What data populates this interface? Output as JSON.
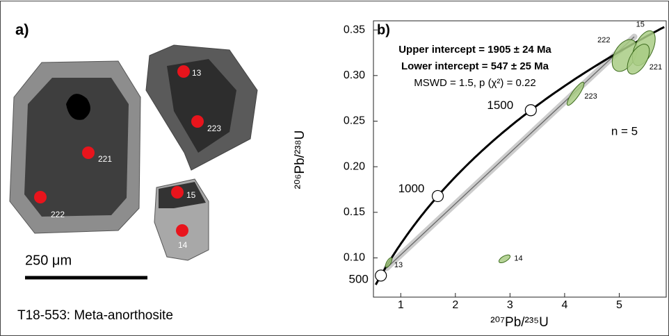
{
  "panel_a": {
    "label": "a)",
    "scale": "250 μm",
    "caption": "T18-553: Meta-anorthosite",
    "spots": [
      "13",
      "223",
      "221",
      "222",
      "15",
      "14"
    ]
  },
  "chart_data": {
    "type": "scatter",
    "label": "b)",
    "x_label": "²⁰⁷Pb/²³⁵U",
    "y_label": "²⁰⁶Pb/²³⁸U",
    "annotations": [
      "Upper intercept  = 1905 ± 24 Ma",
      "Lower intercept = 547 ± 25 Ma",
      "MSWD = 1.5, p (χ²) = 0.22",
      "n = 5"
    ],
    "labels": [
      "13",
      "14",
      "223",
      "222",
      "15",
      "221"
    ],
    "x": [
      0.78,
      2.9,
      4.2,
      5.1,
      5.45,
      5.35
    ],
    "y": [
      0.095,
      0.099,
      0.28,
      0.322,
      0.33,
      0.318
    ],
    "color": "#a9cc85",
    "concordia_ages": [
      500,
      1000,
      1500
    ],
    "xlim": [
      0.5,
      5.86
    ],
    "ylim": [
      0.057,
      0.36
    ],
    "xticks": [
      1,
      2,
      3,
      4,
      5
    ],
    "yticks": [
      {
        "value": 0.1,
        "label": "0.10"
      },
      0.15,
      {
        "value": 0.2,
        "label": "0.20"
      },
      0.25,
      {
        "value": 0.3,
        "label": "0.30"
      },
      0.35
    ]
  }
}
